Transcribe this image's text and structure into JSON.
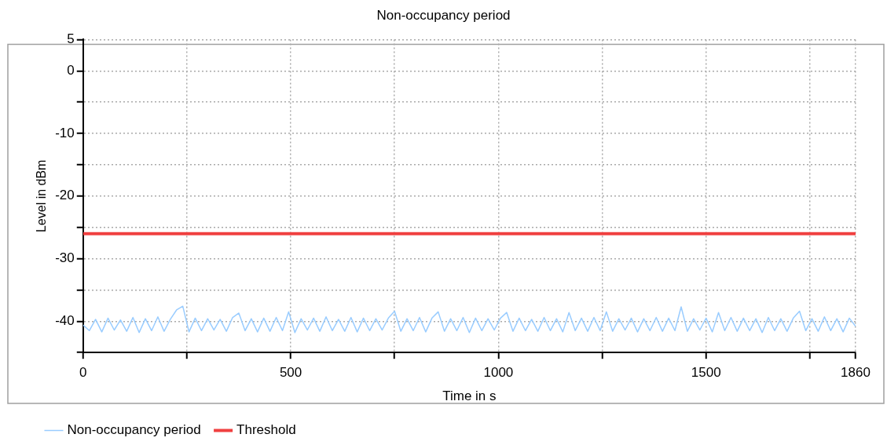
{
  "chart_data": {
    "type": "line",
    "title": "Non-occupancy period",
    "xlabel": "Time in s",
    "ylabel": "Level in dBm",
    "xlim": [
      0,
      1860
    ],
    "xticks": [
      0,
      {
        "value": 250,
        "label": null
      },
      500,
      {
        "value": 750,
        "label": null
      },
      1000,
      {
        "value": 1250,
        "label": null
      },
      1500,
      {
        "value": 1750,
        "label": null
      },
      1860
    ],
    "ylim": [
      -45,
      5
    ],
    "yticks": [
      {
        "value": -45,
        "label": null
      },
      -40,
      {
        "value": -35,
        "label": null
      },
      -30,
      {
        "value": -25,
        "label": null
      },
      -20,
      {
        "value": -15,
        "label": null
      },
      -10,
      {
        "value": -5,
        "label": null
      },
      0,
      5
    ],
    "grid": true,
    "legend": "bottom left",
    "marker": "none",
    "x": [
      0,
      15,
      30,
      45,
      60,
      75,
      90,
      105,
      120,
      135,
      150,
      165,
      180,
      195,
      210,
      225,
      240,
      255,
      270,
      285,
      300,
      315,
      330,
      345,
      360,
      375,
      390,
      405,
      420,
      435,
      450,
      465,
      480,
      495,
      510,
      525,
      540,
      555,
      570,
      585,
      600,
      615,
      630,
      645,
      660,
      675,
      690,
      705,
      720,
      735,
      750,
      765,
      780,
      795,
      810,
      825,
      840,
      855,
      870,
      885,
      900,
      915,
      930,
      945,
      960,
      975,
      990,
      1005,
      1020,
      1035,
      1050,
      1065,
      1080,
      1095,
      1110,
      1125,
      1140,
      1155,
      1170,
      1185,
      1200,
      1215,
      1230,
      1245,
      1260,
      1275,
      1290,
      1305,
      1320,
      1335,
      1350,
      1365,
      1380,
      1395,
      1410,
      1425,
      1440,
      1455,
      1470,
      1485,
      1500,
      1515,
      1530,
      1545,
      1560,
      1575,
      1590,
      1605,
      1620,
      1635,
      1650,
      1665,
      1680,
      1695,
      1710,
      1725,
      1740,
      1755,
      1770,
      1785,
      1800,
      1815,
      1830,
      1845,
      1860
    ],
    "series": [
      {
        "name": "Non-occupancy period",
        "color": "#99ccff",
        "values": [
          -40.6,
          -41.5,
          -39.7,
          -41.7,
          -39.5,
          -41.4,
          -39.8,
          -41.6,
          -39.4,
          -41.8,
          -39.6,
          -41.5,
          -39.3,
          -41.6,
          -39.7,
          -38.2,
          -37.6,
          -41.7,
          -39.5,
          -41.5,
          -39.6,
          -41.4,
          -39.7,
          -41.6,
          -39.4,
          -38.7,
          -41.5,
          -39.6,
          -41.7,
          -39.5,
          -41.6,
          -39.4,
          -41.5,
          -38.5,
          -41.8,
          -39.6,
          -41.4,
          -39.5,
          -41.6,
          -39.3,
          -41.5,
          -39.7,
          -41.6,
          -39.4,
          -41.7,
          -39.5,
          -41.5,
          -39.6,
          -41.4,
          -39.5,
          -38.4,
          -41.6,
          -39.6,
          -41.5,
          -39.4,
          -41.7,
          -39.5,
          -38.5,
          -41.6,
          -39.6,
          -41.5,
          -39.4,
          -41.8,
          -39.5,
          -41.5,
          -39.6,
          -41.4,
          -39.5,
          -38.6,
          -41.6,
          -39.5,
          -41.5,
          -39.7,
          -41.6,
          -39.4,
          -41.5,
          -39.6,
          -41.7,
          -38.6,
          -41.5,
          -39.5,
          -41.6,
          -39.4,
          -41.5,
          -38.5,
          -41.6,
          -39.6,
          -41.4,
          -39.5,
          -41.7,
          -39.6,
          -41.5,
          -39.4,
          -41.6,
          -39.5,
          -41.5,
          -37.7,
          -41.6,
          -39.6,
          -41.4,
          -39.5,
          -41.7,
          -38.6,
          -41.5,
          -39.4,
          -41.6,
          -39.5,
          -41.5,
          -39.6,
          -41.8,
          -39.4,
          -41.5,
          -39.6,
          -41.6,
          -39.5,
          -38.4,
          -41.5,
          -39.6,
          -41.6,
          -39.3,
          -41.5,
          -39.6,
          -41.7,
          -39.5,
          -40.8
        ]
      },
      {
        "name": "Threshold",
        "color": "#f04040",
        "x": [
          0,
          1860
        ],
        "values": [
          -26,
          -26
        ]
      }
    ]
  }
}
